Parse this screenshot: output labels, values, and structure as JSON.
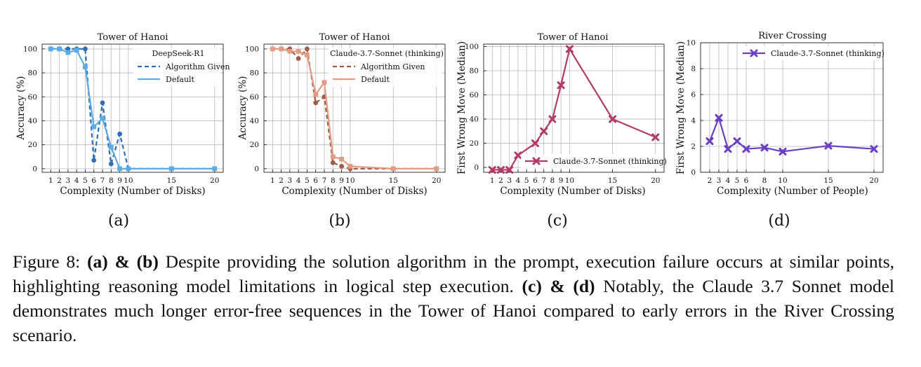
{
  "charts": [
    {
      "title": "Tower of Hanoi",
      "xlabel": "Complexity (Number of Disks)",
      "ylabel": "Accuracy (%)",
      "sub": "(a)"
    },
    {
      "title": "Tower of Hanoi",
      "xlabel": "Complexity (Number of Disks)",
      "ylabel": "Accuracy (%)",
      "sub": "(b)"
    },
    {
      "title": "Tower of Hanoi",
      "xlabel": "Complexity (Number of Disks)",
      "ylabel": "First Wrong Move (Median)",
      "sub": "(c)"
    },
    {
      "title": "River Crossing",
      "xlabel": "Complexity (Number of People)",
      "ylabel": "First Wrong Move (Median)",
      "sub": "(d)"
    }
  ],
  "chart_data": [
    {
      "type": "line",
      "title": "Tower of Hanoi",
      "xlabel": "Complexity (Number of Disks)",
      "ylabel": "Accuracy (%)",
      "xlim": [
        0,
        21
      ],
      "ylim": [
        -3,
        104
      ],
      "xticks": [
        1,
        2,
        3,
        4,
        5,
        6,
        7,
        8,
        9,
        10,
        15,
        20
      ],
      "yticks": [
        0,
        20,
        40,
        60,
        80,
        100
      ],
      "grid": true,
      "legend_title": "DeepSeek-R1",
      "legend_position": "top-right",
      "series": [
        {
          "name": "Algorithm Given",
          "style": "dashed",
          "color": "#2f6db5",
          "marker": "circle",
          "x": [
            1,
            2,
            3,
            4,
            5,
            6,
            7,
            8,
            9,
            10,
            15,
            20
          ],
          "y": [
            100,
            100,
            100,
            100,
            100,
            7,
            55,
            4,
            29,
            0,
            0,
            0
          ]
        },
        {
          "name": "Default",
          "style": "solid",
          "color": "#5aabe6",
          "marker": "square",
          "x": [
            1,
            2,
            3,
            4,
            5,
            6,
            7,
            8,
            9,
            10,
            15,
            20
          ],
          "y": [
            100,
            100,
            97,
            99,
            85,
            35,
            42,
            18,
            0,
            0,
            0,
            0
          ]
        }
      ]
    },
    {
      "type": "line",
      "title": "Tower of Hanoi",
      "xlabel": "Complexity (Number of Disks)",
      "ylabel": "Accuracy (%)",
      "xlim": [
        0,
        21
      ],
      "ylim": [
        -3,
        104
      ],
      "xticks": [
        1,
        2,
        3,
        4,
        5,
        6,
        7,
        8,
        9,
        10,
        15,
        20
      ],
      "yticks": [
        0,
        20,
        40,
        60,
        80,
        100
      ],
      "grid": true,
      "legend_title": "Claude-3.7-Sonnet (thinking)",
      "legend_position": "top-right",
      "series": [
        {
          "name": "Algorithm Given",
          "style": "dashed",
          "color": "#9e5c43",
          "marker": "circle",
          "x": [
            1,
            2,
            3,
            4,
            5,
            6,
            7,
            8,
            9,
            10,
            15,
            20
          ],
          "y": [
            100,
            100,
            100,
            92,
            100,
            55,
            60,
            5,
            2,
            0,
            0,
            0
          ]
        },
        {
          "name": "Default",
          "style": "solid",
          "color": "#e39b83",
          "marker": "square",
          "x": [
            1,
            2,
            3,
            4,
            5,
            6,
            7,
            8,
            9,
            10,
            15,
            20
          ],
          "y": [
            100,
            100,
            98,
            98,
            95,
            62,
            72,
            10,
            8,
            2,
            0,
            0
          ]
        }
      ]
    },
    {
      "type": "line",
      "title": "Tower of Hanoi",
      "xlabel": "Complexity (Number of Disks)",
      "ylabel": "First Wrong Move (Median)",
      "xlim": [
        0,
        21
      ],
      "ylim": [
        -4,
        102
      ],
      "xticks": [
        1,
        2,
        3,
        4,
        5,
        6,
        7,
        8,
        9,
        10,
        15,
        20
      ],
      "yticks": [
        0,
        20,
        40,
        60,
        80,
        100
      ],
      "grid": true,
      "legend_title": "",
      "legend_position": "bottom-right",
      "series": [
        {
          "name": "Claude-3.7-Sonnet (thinking)",
          "style": "solid",
          "color": "#b43a6a",
          "marker": "x",
          "x": [
            1,
            2,
            3,
            4,
            6,
            7,
            8,
            9,
            10,
            15,
            20
          ],
          "y": [
            -2,
            -2,
            -2,
            10,
            20,
            30,
            40,
            68,
            98,
            40,
            25
          ]
        }
      ]
    },
    {
      "type": "line",
      "title": "River Crossing",
      "xlabel": "Complexity (Number of People)",
      "ylabel": "First Wrong Move (Median)",
      "xlim": [
        1,
        21
      ],
      "ylim": [
        0,
        10
      ],
      "xticks": [
        2,
        3,
        4,
        5,
        6,
        8,
        10,
        15,
        20
      ],
      "yticks": [
        0,
        2,
        4,
        6,
        8,
        10
      ],
      "grid": true,
      "legend_title": "",
      "legend_position": "top-right",
      "series": [
        {
          "name": "Claude-3.7-Sonnet (thinking)",
          "style": "solid",
          "color": "#6a3fc4",
          "marker": "x",
          "x": [
            2,
            3,
            4,
            5,
            6,
            8,
            10,
            15,
            20
          ],
          "y": [
            2.4,
            4.2,
            1.8,
            2.4,
            1.8,
            1.9,
            1.6,
            2.05,
            1.8
          ]
        }
      ]
    }
  ],
  "caption": {
    "prefix": "Figure 8:",
    "ab": "(a) & (b)",
    "text1": "Despite providing the solution algorithm in the prompt, execution failure occurs at similar points, highlighting reasoning model limitations in logical step execution.",
    "cd": "(c) & (d)",
    "text2": "Notably, the Claude 3.7 Sonnet model demonstrates much longer error-free sequences in the Tower of Hanoi compared to early errors in the River Crossing scenario."
  }
}
